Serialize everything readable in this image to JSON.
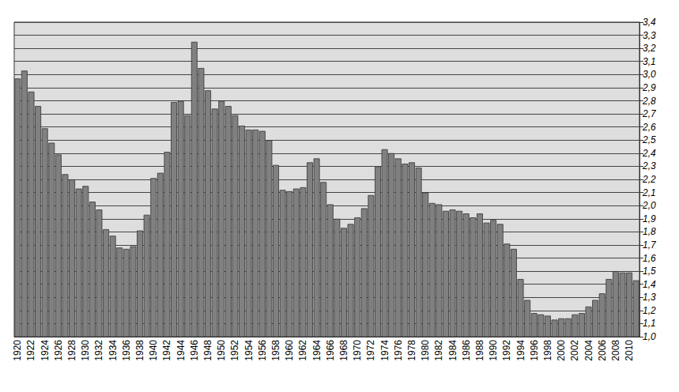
{
  "chart_data": {
    "type": "bar",
    "categories": [
      "1920",
      null,
      "1922",
      null,
      "1924",
      null,
      "1926",
      null,
      "1928",
      null,
      "1930",
      null,
      "1932",
      null,
      "1934",
      null,
      "1936",
      null,
      "1938",
      null,
      "1940",
      null,
      "1942",
      null,
      "1944",
      null,
      "1946",
      null,
      "1948",
      null,
      "1950",
      null,
      "1952",
      null,
      "1954",
      null,
      "1956",
      null,
      "1958",
      null,
      "1960",
      null,
      "1962",
      null,
      "1964",
      null,
      "1966",
      null,
      "1968",
      null,
      "1970",
      null,
      "1972",
      null,
      "1974",
      null,
      "1976",
      null,
      "1978",
      null,
      "1980",
      null,
      "1982",
      null,
      "1984",
      null,
      "1986",
      null,
      "1988",
      null,
      "1990",
      null,
      "1992",
      null,
      "1994",
      null,
      "1996",
      null,
      "1998",
      null,
      "2000",
      null,
      "2002",
      null,
      "2004",
      null,
      "2006",
      null,
      "2008",
      null,
      "2010",
      null
    ],
    "values": [
      2.97,
      3.03,
      2.87,
      2.76,
      2.59,
      2.48,
      2.39,
      2.24,
      2.2,
      2.13,
      2.15,
      2.03,
      1.97,
      1.82,
      1.77,
      1.68,
      1.67,
      1.69,
      1.81,
      1.93,
      2.21,
      2.25,
      2.41,
      2.79,
      2.8,
      2.69,
      3.25,
      3.05,
      2.88,
      2.74,
      2.8,
      2.76,
      2.69,
      2.61,
      2.58,
      2.58,
      2.57,
      2.5,
      2.31,
      2.12,
      2.11,
      2.13,
      2.14,
      2.33,
      2.36,
      2.18,
      2.01,
      1.9,
      1.83,
      1.86,
      1.91,
      1.98,
      2.08,
      2.3,
      2.43,
      2.4,
      2.36,
      2.32,
      2.33,
      2.29,
      2.1,
      2.02,
      2.01,
      1.96,
      1.97,
      1.96,
      1.94,
      1.91,
      1.94,
      1.87,
      1.89,
      1.86,
      1.71,
      1.67,
      1.44,
      1.28,
      1.18,
      1.17,
      1.16,
      1.13,
      1.14,
      1.14,
      1.17,
      1.18,
      1.23,
      1.28,
      1.33,
      1.44,
      1.5,
      1.49,
      1.49,
      1.43
    ],
    "color": "#808080",
    "ylim": [
      1.0,
      3.4
    ],
    "yticks": [
      {
        "value": 1.0,
        "label": "1,0"
      },
      {
        "value": 1.1,
        "label": "1,1"
      },
      {
        "value": 1.2,
        "label": "1,2"
      },
      {
        "value": 1.3,
        "label": "1,3"
      },
      {
        "value": 1.4,
        "label": "1,4"
      },
      {
        "value": 1.5,
        "label": "1,5"
      },
      {
        "value": 1.6,
        "label": "1,6"
      },
      {
        "value": 1.7,
        "label": "1,7"
      },
      {
        "value": 1.8,
        "label": "1,8"
      },
      {
        "value": 1.9,
        "label": "1,9"
      },
      {
        "value": 2.0,
        "label": "2,0"
      },
      {
        "value": 2.1,
        "label": "2,1"
      },
      {
        "value": 2.2,
        "label": "2,2"
      },
      {
        "value": 2.3,
        "label": "2,3"
      },
      {
        "value": 2.4,
        "label": "2,4"
      },
      {
        "value": 2.5,
        "label": "2,5"
      },
      {
        "value": 2.6,
        "label": "2,6"
      },
      {
        "value": 2.7,
        "label": "2,7"
      },
      {
        "value": 2.8,
        "label": "2,8"
      },
      {
        "value": 2.9,
        "label": "2,9"
      },
      {
        "value": 3.0,
        "label": "3,0"
      },
      {
        "value": 3.1,
        "label": "3,1"
      },
      {
        "value": 3.2,
        "label": "3,2"
      },
      {
        "value": 3.3,
        "label": "3,3"
      },
      {
        "value": 3.4,
        "label": "3,4"
      }
    ],
    "grid": true
  }
}
